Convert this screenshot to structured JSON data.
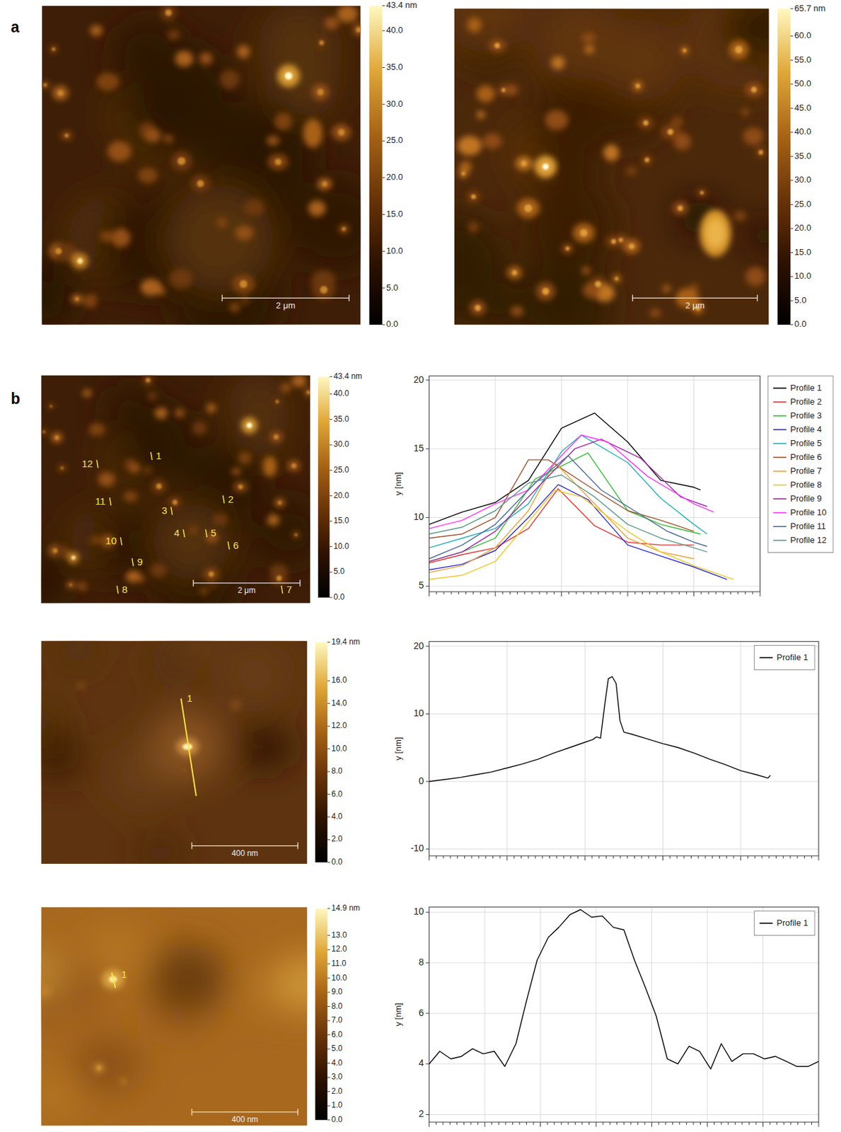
{
  "panel_labels": [
    "a",
    "b"
  ],
  "images": [
    {
      "colorbar": {
        "range": [
          0,
          43.4
        ],
        "ticks": [
          {
            "value": 43.4,
            "label": "43.4 nm"
          },
          {
            "value": 40,
            "label": "40.0"
          },
          {
            "value": 35,
            "label": "35.0"
          },
          {
            "value": 30,
            "label": "30.0"
          },
          {
            "value": 25,
            "label": "25.0"
          },
          {
            "value": 20,
            "label": "20.0"
          },
          {
            "value": 15,
            "label": "15.0"
          },
          {
            "value": 10,
            "label": "10.0"
          },
          {
            "value": 5,
            "label": "5.0"
          },
          {
            "value": 0,
            "label": "0.0"
          }
        ]
      },
      "scale_bar": "2 μm"
    },
    {
      "colorbar": {
        "range": [
          0,
          65.7
        ],
        "ticks": [
          {
            "value": 65.7,
            "label": "65.7 nm"
          },
          {
            "value": 60,
            "label": "60.0"
          },
          {
            "value": 55,
            "label": "55.0"
          },
          {
            "value": 50,
            "label": "50.0"
          },
          {
            "value": 45,
            "label": "45.0"
          },
          {
            "value": 40,
            "label": "40.0"
          },
          {
            "value": 35,
            "label": "35.0"
          },
          {
            "value": 30,
            "label": "30.0"
          },
          {
            "value": 25,
            "label": "25.0"
          },
          {
            "value": 20,
            "label": "20.0"
          },
          {
            "value": 15,
            "label": "15.0"
          },
          {
            "value": 10,
            "label": "10.0"
          },
          {
            "value": 5,
            "label": "5.0"
          },
          {
            "value": 0,
            "label": "0.0"
          }
        ]
      },
      "scale_bar": "2 μm"
    },
    {
      "colorbar": {
        "range": [
          0,
          43.4
        ],
        "ticks": [
          {
            "value": 43.4,
            "label": "43.4 nm"
          },
          {
            "value": 40,
            "label": "40.0"
          },
          {
            "value": 35,
            "label": "35.0"
          },
          {
            "value": 30,
            "label": "30.0"
          },
          {
            "value": 25,
            "label": "25.0"
          },
          {
            "value": 20,
            "label": "20.0"
          },
          {
            "value": 15,
            "label": "15.0"
          },
          {
            "value": 10,
            "label": "10.0"
          },
          {
            "value": 5,
            "label": "5.0"
          },
          {
            "value": 0,
            "label": "0.0"
          }
        ]
      },
      "scale_bar": "2 μm",
      "markers": [
        "1",
        "2",
        "3",
        "4",
        "5",
        "6",
        "7",
        "8",
        "9",
        "10",
        "11",
        "12"
      ]
    },
    {
      "colorbar": {
        "range": [
          0,
          19.4
        ],
        "ticks": [
          {
            "value": 19.4,
            "label": "19.4 nm"
          },
          {
            "value": 16,
            "label": "16.0"
          },
          {
            "value": 14,
            "label": "14.0"
          },
          {
            "value": 12,
            "label": "12.0"
          },
          {
            "value": 10,
            "label": "10.0"
          },
          {
            "value": 8,
            "label": "8.0"
          },
          {
            "value": 6,
            "label": "6.0"
          },
          {
            "value": 4,
            "label": "4.0"
          },
          {
            "value": 2,
            "label": "2.0"
          },
          {
            "value": 0,
            "label": "0.0"
          }
        ]
      },
      "scale_bar": "400 nm",
      "markers": [
        "1"
      ]
    },
    {
      "colorbar": {
        "range": [
          0,
          14.9
        ],
        "ticks": [
          {
            "value": 14.9,
            "label": "14.9 nm"
          },
          {
            "value": 13,
            "label": "13.0"
          },
          {
            "value": 12,
            "label": "12.0"
          },
          {
            "value": 11,
            "label": "11.0"
          },
          {
            "value": 10,
            "label": "10.0"
          },
          {
            "value": 9,
            "label": "9.0"
          },
          {
            "value": 8,
            "label": "8.0"
          },
          {
            "value": 7,
            "label": "7.0"
          },
          {
            "value": 6,
            "label": "6.0"
          },
          {
            "value": 5,
            "label": "5.0"
          },
          {
            "value": 4,
            "label": "4.0"
          },
          {
            "value": 3,
            "label": "3.0"
          },
          {
            "value": 2,
            "label": "2.0"
          },
          {
            "value": 1,
            "label": "1.0"
          },
          {
            "value": 0,
            "label": "0.0"
          }
        ]
      },
      "scale_bar": "400 nm",
      "markers": [
        "1"
      ]
    }
  ],
  "chart_data": [
    {
      "type": "line",
      "ylabel": "y [nm]",
      "xlim": [
        0,
        5
      ],
      "xticks": [
        0,
        1,
        2,
        3,
        4,
        5
      ],
      "ylim": [
        4.6,
        20.3
      ],
      "yticks": [
        5,
        10,
        15,
        20
      ],
      "grid": true,
      "legend": "right",
      "tick_labels": "y",
      "series": [
        {
          "name": "Profile 1",
          "color": "#000000",
          "x": [
            0,
            0.5,
            1,
            1.5,
            2,
            2.5,
            3,
            3.5,
            4,
            4.1
          ],
          "values": [
            9.5,
            10.4,
            11.1,
            12.7,
            16.5,
            17.6,
            15.5,
            12.7,
            12.2,
            12.0
          ]
        },
        {
          "name": "Profile 2",
          "color": "#e8312f",
          "x": [
            0,
            0.5,
            1,
            1.5,
            1.95,
            2.5,
            3,
            3.5,
            4
          ],
          "values": [
            6.7,
            7.3,
            7.8,
            9.2,
            12.1,
            9.4,
            8.2,
            8.0,
            8.0
          ]
        },
        {
          "name": "Profile 3",
          "color": "#2ec02e",
          "x": [
            0,
            0.5,
            1,
            1.6,
            2.4,
            3,
            3.5,
            4.1
          ],
          "values": [
            6.8,
            7.5,
            8.5,
            12.8,
            14.7,
            10.5,
            9.5,
            8.8
          ]
        },
        {
          "name": "Profile 4",
          "color": "#2a2ad8",
          "x": [
            0,
            0.5,
            1,
            1.5,
            1.95,
            2.4,
            3,
            3.5,
            4,
            4.5
          ],
          "values": [
            6.2,
            6.6,
            7.6,
            10.0,
            12.4,
            11.3,
            8.0,
            7.2,
            6.4,
            5.5
          ]
        },
        {
          "name": "Profile 5",
          "color": "#20b0b8",
          "x": [
            0,
            0.5,
            1,
            1.5,
            2,
            2.3,
            3,
            3.5,
            4,
            4.2
          ],
          "values": [
            7.8,
            8.5,
            9.2,
            11.0,
            14.8,
            16.0,
            14.0,
            11.4,
            9.5,
            8.8
          ]
        },
        {
          "name": "Profile 6",
          "color": "#a0522d",
          "x": [
            0,
            0.5,
            1,
            1.5,
            1.8,
            2.5,
            3,
            3.5,
            4
          ],
          "values": [
            8.5,
            8.8,
            10.0,
            14.2,
            14.2,
            12.0,
            10.5,
            9.8,
            9.0
          ]
        },
        {
          "name": "Profile 7",
          "color": "#f0a030",
          "x": [
            0,
            0.5,
            1,
            1.5,
            1.9,
            2.5,
            3,
            3.5,
            4
          ],
          "values": [
            6.0,
            6.5,
            7.8,
            10.5,
            14.0,
            11.0,
            8.5,
            7.5,
            7.0
          ]
        },
        {
          "name": "Profile 8",
          "color": "#f0c820",
          "x": [
            0,
            0.5,
            1,
            1.9,
            2.3,
            3,
            3.5,
            4,
            4.6
          ],
          "values": [
            5.5,
            5.8,
            6.8,
            12.0,
            11.5,
            9.0,
            7.5,
            6.5,
            5.5
          ]
        },
        {
          "name": "Profile 9",
          "color": "#a020a8",
          "x": [
            0,
            0.5,
            1,
            1.5,
            2.2,
            2.6,
            3.2,
            3.8,
            4.2
          ],
          "values": [
            6.8,
            7.5,
            9.0,
            11.5,
            15.0,
            15.7,
            14.3,
            11.5,
            10.8
          ]
        },
        {
          "name": "Profile 10",
          "color": "#ff30ff",
          "x": [
            0,
            0.5,
            1,
            1.5,
            2.3,
            2.7,
            3.3,
            4,
            4.3
          ],
          "values": [
            9.2,
            9.8,
            11.0,
            12.0,
            16.0,
            15.5,
            13.0,
            11.0,
            10.4
          ]
        },
        {
          "name": "Profile 11",
          "color": "#4a6a9a",
          "x": [
            0,
            0.5,
            1,
            1.6,
            2.1,
            2.6,
            3.1,
            3.6,
            4,
            4.2
          ],
          "values": [
            7.0,
            8.0,
            9.5,
            12.5,
            14.5,
            12.0,
            10.5,
            9.0,
            8.2,
            7.9
          ]
        },
        {
          "name": "Profile 12",
          "color": "#5a9a8a",
          "x": [
            0,
            0.5,
            1,
            1.5,
            2,
            2.5,
            3,
            3.5,
            4,
            4.2
          ],
          "values": [
            8.8,
            9.3,
            10.5,
            12.5,
            13.1,
            11.5,
            9.5,
            8.5,
            7.8,
            7.5
          ]
        }
      ]
    },
    {
      "type": "line",
      "ylabel": "y [nm]",
      "xlim": [
        0,
        5
      ],
      "xticks": [
        0,
        1,
        2,
        3,
        4,
        5
      ],
      "ylim": [
        -11,
        20.7
      ],
      "yticks": [
        -10,
        0,
        10,
        20
      ],
      "grid": true,
      "legend": "upper right",
      "tick_labels": "y",
      "series": [
        {
          "name": "Profile 1",
          "color": "#000000",
          "x": [
            0,
            0.2,
            0.4,
            0.6,
            0.8,
            1,
            1.2,
            1.4,
            1.6,
            1.8,
            2,
            2.1,
            2.15,
            2.2,
            2.25,
            2.3,
            2.35,
            2.4,
            2.45,
            2.5,
            2.6,
            2.8,
            3,
            3.2,
            3.4,
            3.6,
            3.8,
            4,
            4.2,
            4.35,
            4.38
          ],
          "values": [
            0,
            0.3,
            0.6,
            1.0,
            1.4,
            2.0,
            2.6,
            3.3,
            4.2,
            5.0,
            5.8,
            6.2,
            6.6,
            6.4,
            11,
            15.2,
            15.5,
            14.5,
            9,
            7.3,
            7.0,
            6.3,
            5.6,
            5.0,
            4.2,
            3.3,
            2.5,
            1.6,
            1.0,
            0.5,
            0.9
          ]
        }
      ]
    },
    {
      "type": "line",
      "ylabel": "y [nm]",
      "xlim": [
        0,
        7
      ],
      "xticks": [
        0,
        1,
        2,
        3,
        4,
        5,
        6,
        7
      ],
      "ylim": [
        1.7,
        10.2
      ],
      "yticks": [
        2,
        4,
        6,
        8,
        10
      ],
      "grid": true,
      "legend": "upper right",
      "tick_labels": "y",
      "series": [
        {
          "name": "Profile 1",
          "color": "#000000",
          "x": [
            0,
            0.19,
            0.39,
            0.58,
            0.78,
            0.97,
            1.17,
            1.36,
            1.56,
            1.75,
            1.94,
            2.14,
            2.33,
            2.53,
            2.72,
            2.92,
            3.11,
            3.31,
            3.5,
            3.69,
            3.89,
            4.08,
            4.28,
            4.47,
            4.67,
            4.86,
            5.06,
            5.25,
            5.44,
            5.64,
            5.83,
            6.03,
            6.22,
            6.42,
            6.61,
            6.81,
            7.0
          ],
          "values": [
            4.0,
            4.5,
            4.2,
            4.3,
            4.6,
            4.4,
            4.5,
            3.9,
            4.8,
            6.5,
            8.1,
            9.0,
            9.4,
            9.9,
            10.1,
            9.8,
            9.85,
            9.4,
            9.3,
            8.1,
            7.0,
            5.9,
            4.2,
            4.0,
            4.7,
            4.5,
            3.8,
            4.8,
            4.1,
            4.4,
            4.4,
            4.2,
            4.3,
            4.1,
            3.9,
            3.9,
            4.1
          ]
        }
      ]
    }
  ]
}
